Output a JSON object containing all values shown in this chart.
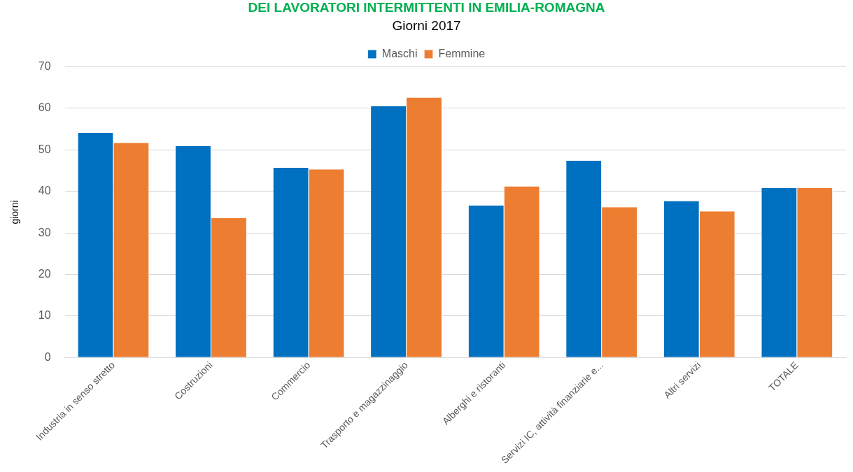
{
  "chart_data": {
    "type": "bar",
    "title": "DEI LAVORATORI INTERMITTENTI IN EMILIA-ROMAGNA",
    "subtitle": "Giorni 2017",
    "ylabel": "giorni",
    "categories": [
      "Industria in senso stretto",
      "Costruzioni",
      "Commercio",
      "Trasporto e magazzinaggio",
      "Alberghi e ristoranti",
      "Servizi IC, attività finanziarie e...",
      "Altri servizi",
      "TOTALE"
    ],
    "series": [
      {
        "name": "Maschi",
        "color": "#0070c0",
        "values": [
          54.1,
          50.9,
          45.7,
          60.5,
          36.6,
          47.4,
          37.7,
          40.8
        ]
      },
      {
        "name": "Femmine",
        "color": "#ed7d31",
        "values": [
          51.7,
          33.6,
          45.3,
          62.6,
          41.2,
          36.2,
          35.2,
          40.8
        ]
      }
    ],
    "ylim": [
      0,
      70
    ],
    "yticks": [
      0,
      10,
      20,
      30,
      40,
      50,
      60,
      70
    ],
    "grid": "y",
    "legend": "top"
  }
}
